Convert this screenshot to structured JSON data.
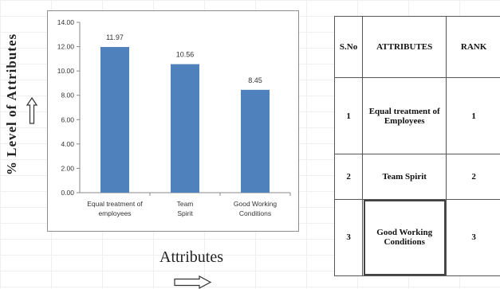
{
  "chart_data": {
    "type": "bar",
    "categories": [
      "Equal treatment of employees",
      "Team Spirit",
      "Good Working Conditions"
    ],
    "values": [
      11.97,
      10.56,
      8.45
    ],
    "value_labels": [
      "11.97",
      "10.56",
      "8.45"
    ],
    "ylim": [
      0,
      14
    ],
    "yticks": [
      "0.00",
      "2.00",
      "4.00",
      "6.00",
      "8.00",
      "10.00",
      "12.00",
      "14.00"
    ],
    "ylabel": "% Level of Attributes",
    "xlabel": "Attributes",
    "bar_color": "#4f81bd",
    "grid": false
  },
  "table": {
    "headers": [
      "S.No",
      "ATTRIBUTES",
      "RANK"
    ],
    "rows": [
      {
        "sno": "1",
        "attribute": "Equal treatment of Employees",
        "rank": "1"
      },
      {
        "sno": "2",
        "attribute": "Team Spirit",
        "rank": "2"
      },
      {
        "sno": "3",
        "attribute": "Good Working Conditions",
        "rank": "3"
      }
    ]
  }
}
